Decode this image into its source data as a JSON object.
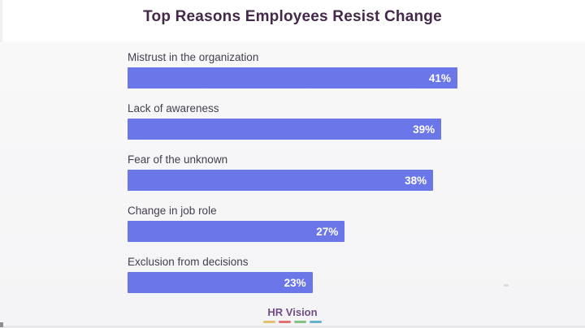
{
  "title": "Top Reasons Employees Resist Change",
  "chart_data": {
    "type": "bar",
    "orientation": "horizontal",
    "title": "Top Reasons Employees Resist Change",
    "categories": [
      "Mistrust in the organization",
      "Lack of awareness",
      "Fear of the unknown",
      "Change in job role",
      "Exclusion from decisions"
    ],
    "values": [
      41,
      39,
      38,
      27,
      23
    ],
    "value_labels": [
      "41%",
      "39%",
      "38%",
      "27%",
      "23%"
    ],
    "value_suffix": "%",
    "xlim": [
      0,
      41
    ],
    "grid": false,
    "legend": false,
    "bar_color": "#6b77e8",
    "value_label_color": "#ffffff",
    "category_label_color": "#443e4e",
    "title_color": "#44294a"
  },
  "footer": {
    "brand": "HR Vision",
    "brand_color": "#6f4d86",
    "underline_colors": [
      "#e3c06c",
      "#e2706e",
      "#85c287",
      "#64b3cd"
    ]
  }
}
